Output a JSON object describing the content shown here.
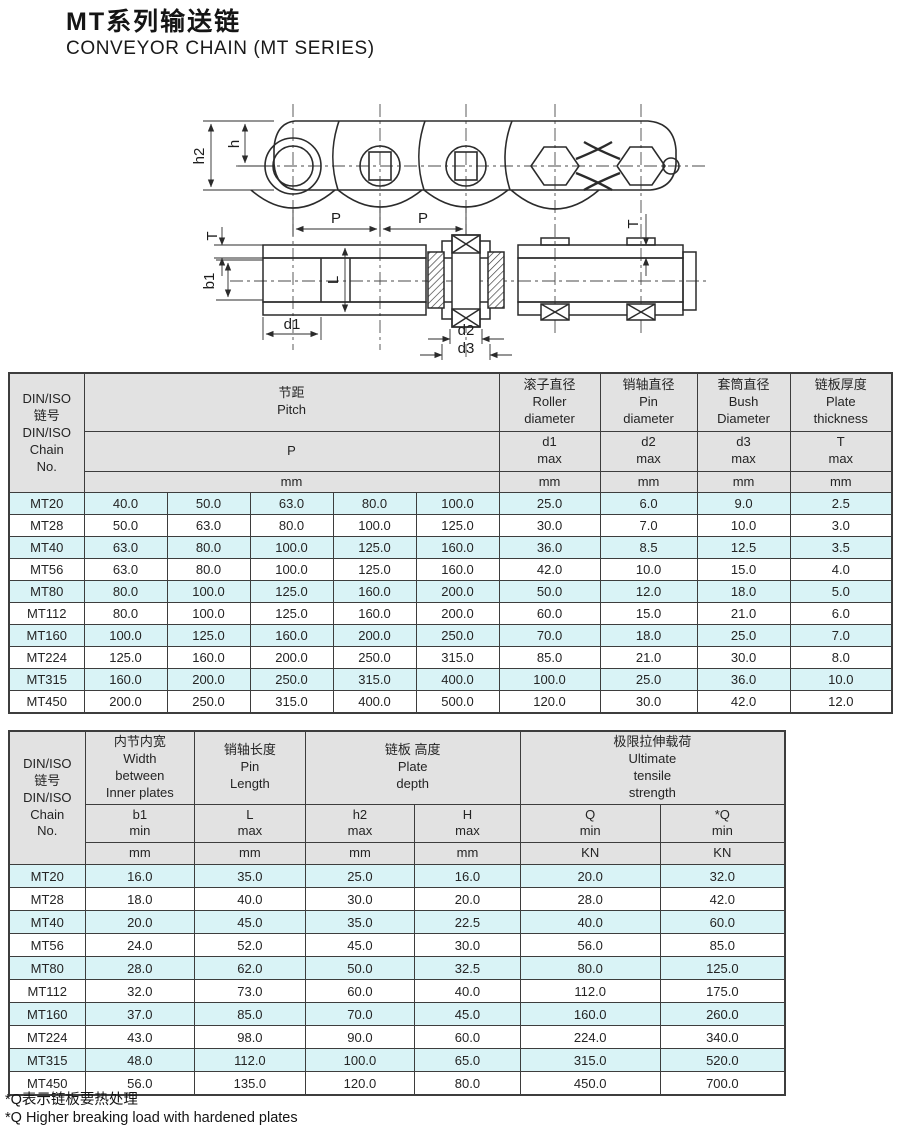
{
  "title": {
    "zh": "MT系列输送链",
    "en": "CONVEYOR CHAIN (MT SERIES)"
  },
  "colors": {
    "stripe": "#d9f3f6",
    "header_bg": "#e2e2e2",
    "border": "#3d3d3d",
    "line": "#2b2b2b"
  },
  "drawing": {
    "side_view_labels": {
      "h2": "h2",
      "h": "h",
      "p1": "P",
      "p2": "P"
    },
    "plan_view_labels": {
      "t_left": "T",
      "b1": "b1",
      "l": "L",
      "d1": "d1",
      "d2": "d2",
      "d3": "d3",
      "t_right": "T"
    }
  },
  "table1": {
    "header": {
      "chain_no": "DIN/ISO\n链号\nDIN/ISO\nChain\nNo.",
      "pitch": "节距\nPitch",
      "pitch_symbol": "P",
      "roller": "滚子直径\nRoller\ndiameter",
      "roller_symbol": "d1\nmax",
      "pin": "销轴直径\nPin\ndiameter",
      "pin_symbol": "d2\nmax",
      "bush": "套筒直径\nBush\nDiameter",
      "bush_symbol": "d3\nmax",
      "plate": "链板厚度\nPlate\nthickness",
      "plate_symbol": "T\nmax",
      "unit_mm": "mm"
    },
    "rows": [
      [
        "MT20",
        "40.0",
        "50.0",
        "63.0",
        "80.0",
        "100.0",
        "25.0",
        "6.0",
        "9.0",
        "2.5"
      ],
      [
        "MT28",
        "50.0",
        "63.0",
        "80.0",
        "100.0",
        "125.0",
        "30.0",
        "7.0",
        "10.0",
        "3.0"
      ],
      [
        "MT40",
        "63.0",
        "80.0",
        "100.0",
        "125.0",
        "160.0",
        "36.0",
        "8.5",
        "12.5",
        "3.5"
      ],
      [
        "MT56",
        "63.0",
        "80.0",
        "100.0",
        "125.0",
        "160.0",
        "42.0",
        "10.0",
        "15.0",
        "4.0"
      ],
      [
        "MT80",
        "80.0",
        "100.0",
        "125.0",
        "160.0",
        "200.0",
        "50.0",
        "12.0",
        "18.0",
        "5.0"
      ],
      [
        "MT112",
        "80.0",
        "100.0",
        "125.0",
        "160.0",
        "200.0",
        "60.0",
        "15.0",
        "21.0",
        "6.0"
      ],
      [
        "MT160",
        "100.0",
        "125.0",
        "160.0",
        "200.0",
        "250.0",
        "70.0",
        "18.0",
        "25.0",
        "7.0"
      ],
      [
        "MT224",
        "125.0",
        "160.0",
        "200.0",
        "250.0",
        "315.0",
        "85.0",
        "21.0",
        "30.0",
        "8.0"
      ],
      [
        "MT315",
        "160.0",
        "200.0",
        "250.0",
        "315.0",
        "400.0",
        "100.0",
        "25.0",
        "36.0",
        "10.0"
      ],
      [
        "MT450",
        "200.0",
        "250.0",
        "315.0",
        "400.0",
        "500.0",
        "120.0",
        "30.0",
        "42.0",
        "12.0"
      ]
    ]
  },
  "table2": {
    "header": {
      "chain_no": "DIN/ISO\n链号\nDIN/ISO\nChain\nNo.",
      "width": "内节内宽\nWidth\nbetween\nInner plates",
      "width_symbol": "b1\nmin",
      "pin_len": "销轴长度\nPin\nLength",
      "pin_len_symbol": "L\nmax",
      "plate_depth": "链板 高度\nPlate\ndepth",
      "h2_symbol": "h2\nmax",
      "h_symbol": "H\nmax",
      "strength": "极限拉伸载荷\nUltimate\ntensile\nstrength",
      "q_symbol": "Q\nmin",
      "qstar_symbol": "*Q\nmin",
      "unit_mm": "mm",
      "unit_kn": "KN"
    },
    "rows": [
      [
        "MT20",
        "16.0",
        "35.0",
        "25.0",
        "16.0",
        "20.0",
        "32.0"
      ],
      [
        "MT28",
        "18.0",
        "40.0",
        "30.0",
        "20.0",
        "28.0",
        "42.0"
      ],
      [
        "MT40",
        "20.0",
        "45.0",
        "35.0",
        "22.5",
        "40.0",
        "60.0"
      ],
      [
        "MT56",
        "24.0",
        "52.0",
        "45.0",
        "30.0",
        "56.0",
        "85.0"
      ],
      [
        "MT80",
        "28.0",
        "62.0",
        "50.0",
        "32.5",
        "80.0",
        "125.0"
      ],
      [
        "MT112",
        "32.0",
        "73.0",
        "60.0",
        "40.0",
        "112.0",
        "175.0"
      ],
      [
        "MT160",
        "37.0",
        "85.0",
        "70.0",
        "45.0",
        "160.0",
        "260.0"
      ],
      [
        "MT224",
        "43.0",
        "98.0",
        "90.0",
        "60.0",
        "224.0",
        "340.0"
      ],
      [
        "MT315",
        "48.0",
        "112.0",
        "100.0",
        "65.0",
        "315.0",
        "520.0"
      ],
      [
        "MT450",
        "56.0",
        "135.0",
        "120.0",
        "80.0",
        "450.0",
        "700.0"
      ]
    ]
  },
  "footnotes": [
    "*Q表示链板要热处理",
    "*Q Higher breaking load with hardened plates"
  ]
}
